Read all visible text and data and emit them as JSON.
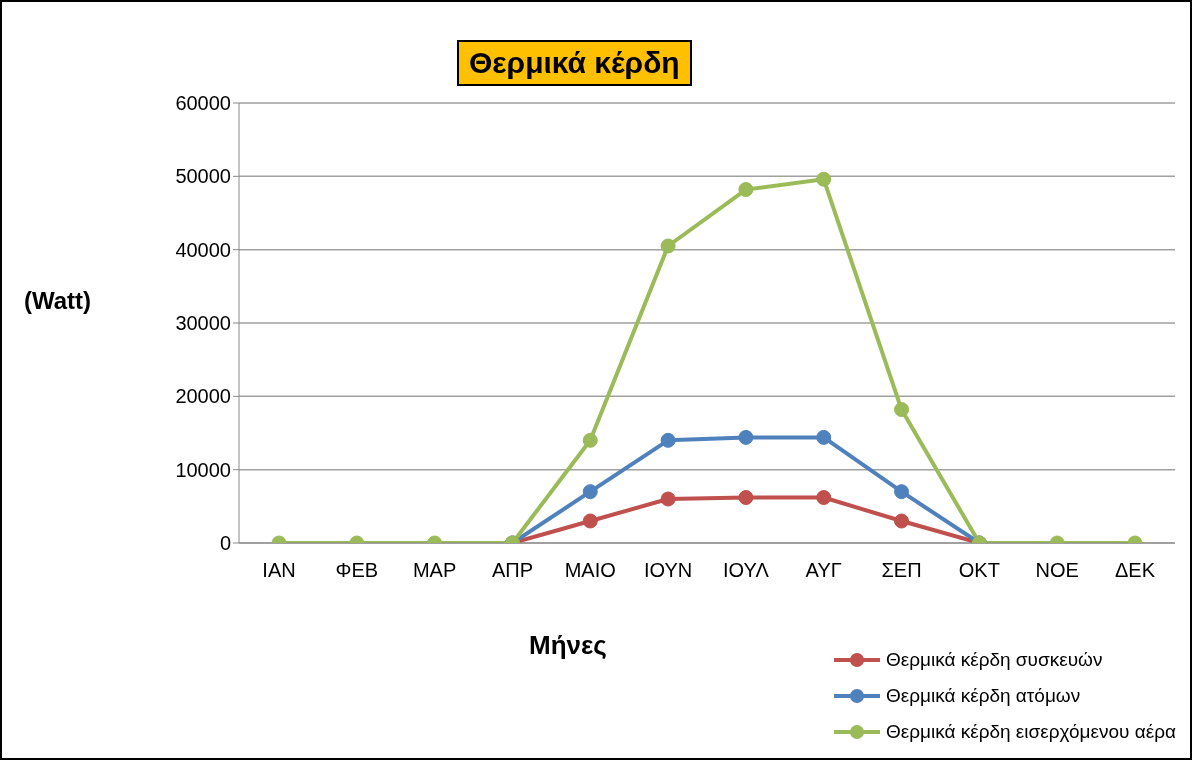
{
  "chart_data": {
    "type": "line",
    "title": "Θερμικά κέρδη",
    "xlabel": "Μήνες",
    "ylabel": "(Watt)",
    "categories": [
      "ΙΑΝ",
      "ΦΕΒ",
      "ΜΑΡ",
      "ΑΠΡ",
      "ΜΑΙΟ",
      "ΙΟΥΝ",
      "ΙΟΥΛ",
      "ΑΥΓ",
      "ΣΕΠ",
      "ΟΚΤ",
      "ΝΟΕ",
      "ΔΕΚ"
    ],
    "series": [
      {
        "name": "Θερμικά κέρδη συσκευών",
        "color": "#c0504d",
        "values": [
          null,
          null,
          null,
          0,
          3000,
          6000,
          6200,
          6200,
          3000,
          0,
          null,
          null
        ]
      },
      {
        "name": "Θερμικά κέρδη ατόμων",
        "color": "#4f81bd",
        "values": [
          null,
          null,
          null,
          0,
          7000,
          14000,
          14400,
          14400,
          7000,
          0,
          null,
          null
        ]
      },
      {
        "name": "Θερμικά κέρδη εισερχόμενου αέρα",
        "color": "#9bbb59",
        "values": [
          0,
          0,
          0,
          0,
          14000,
          40500,
          48200,
          49600,
          18200,
          0,
          0,
          0
        ]
      }
    ],
    "ylim": [
      0,
      60000
    ],
    "yticks": [
      0,
      10000,
      20000,
      30000,
      40000,
      50000,
      60000
    ],
    "grid": "y",
    "legend": "bottom right",
    "marker": "circle",
    "line_style": "solid"
  }
}
